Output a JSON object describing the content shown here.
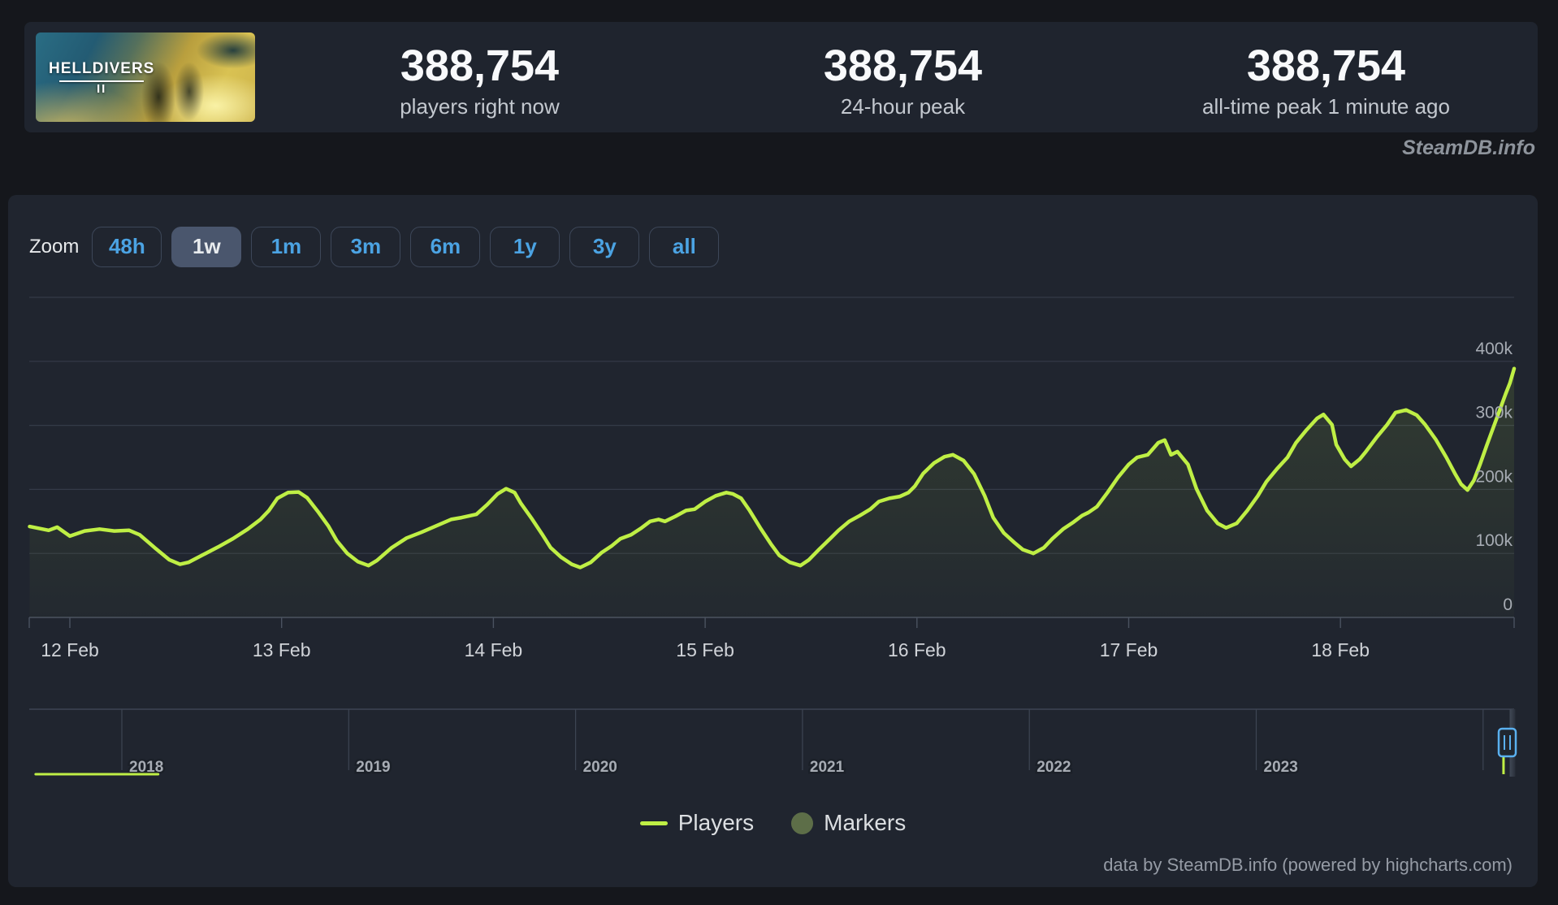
{
  "page": {
    "watermark": "SteamDB.info"
  },
  "header": {
    "capsule": {
      "title": "HELLDIVERS",
      "numeral": "II"
    },
    "stats": [
      {
        "value": "388,754",
        "label": "players right now"
      },
      {
        "value": "388,754",
        "label": "24-hour peak"
      },
      {
        "value": "388,754",
        "label": "all-time peak 1 minute ago"
      }
    ]
  },
  "toolbar": {
    "zoom_label": "Zoom",
    "ranges": [
      {
        "label": "48h",
        "selected": false
      },
      {
        "label": "1w",
        "selected": true
      },
      {
        "label": "1m",
        "selected": false
      },
      {
        "label": "3m",
        "selected": false
      },
      {
        "label": "6m",
        "selected": false
      },
      {
        "label": "1y",
        "selected": false
      },
      {
        "label": "3y",
        "selected": false
      },
      {
        "label": "all",
        "selected": false
      }
    ]
  },
  "chart_data": {
    "type": "line",
    "title": "Concurrent Steam players for HELLDIVERS II",
    "y_axis": {
      "unit": "players (thousands)",
      "gridline_values": [
        0,
        100,
        200,
        300,
        400,
        500
      ],
      "tick_labels": [
        {
          "value": 0,
          "label": "0"
        },
        {
          "value": 100,
          "label": "100k"
        },
        {
          "value": 200,
          "label": "200k"
        },
        {
          "value": 300,
          "label": "300k"
        },
        {
          "value": 400,
          "label": "400k"
        }
      ]
    },
    "x_axis": {
      "tick_days": [
        0,
        1,
        2,
        3,
        4,
        5,
        6
      ],
      "labels": [
        "12 Feb",
        "13 Feb",
        "14 Feb",
        "15 Feb",
        "16 Feb",
        "17 Feb",
        "18 Feb"
      ]
    },
    "series": [
      {
        "name": "Players",
        "color": "#bfef45",
        "x_unit": "days after 12 Feb 00:00",
        "y_unit": "thousands of players",
        "points": [
          [
            -0.19,
            142
          ],
          [
            -0.1,
            136
          ],
          [
            -0.06,
            141
          ],
          [
            0.0,
            127
          ],
          [
            0.07,
            135
          ],
          [
            0.14,
            138
          ],
          [
            0.21,
            135
          ],
          [
            0.28,
            136
          ],
          [
            0.33,
            129
          ],
          [
            0.4,
            109
          ],
          [
            0.47,
            90
          ],
          [
            0.52,
            83
          ],
          [
            0.56,
            86
          ],
          [
            0.63,
            98
          ],
          [
            0.7,
            110
          ],
          [
            0.77,
            123
          ],
          [
            0.84,
            138
          ],
          [
            0.9,
            153
          ],
          [
            0.94,
            167
          ],
          [
            0.98,
            186
          ],
          [
            1.03,
            195
          ],
          [
            1.08,
            196
          ],
          [
            1.12,
            187
          ],
          [
            1.17,
            166
          ],
          [
            1.22,
            143
          ],
          [
            1.26,
            120
          ],
          [
            1.31,
            100
          ],
          [
            1.36,
            87
          ],
          [
            1.41,
            81
          ],
          [
            1.45,
            89
          ],
          [
            1.52,
            109
          ],
          [
            1.59,
            124
          ],
          [
            1.66,
            133
          ],
          [
            1.73,
            143
          ],
          [
            1.8,
            153
          ],
          [
            1.85,
            156
          ],
          [
            1.92,
            161
          ],
          [
            1.97,
            176
          ],
          [
            2.02,
            193
          ],
          [
            2.06,
            201
          ],
          [
            2.1,
            195
          ],
          [
            2.13,
            178
          ],
          [
            2.18,
            155
          ],
          [
            2.23,
            130
          ],
          [
            2.27,
            109
          ],
          [
            2.32,
            94
          ],
          [
            2.37,
            83
          ],
          [
            2.41,
            78
          ],
          [
            2.46,
            86
          ],
          [
            2.51,
            101
          ],
          [
            2.56,
            112
          ],
          [
            2.6,
            123
          ],
          [
            2.65,
            129
          ],
          [
            2.7,
            140
          ],
          [
            2.74,
            150
          ],
          [
            2.78,
            153
          ],
          [
            2.81,
            150
          ],
          [
            2.86,
            158
          ],
          [
            2.91,
            167
          ],
          [
            2.95,
            169
          ],
          [
            3.0,
            181
          ],
          [
            3.05,
            190
          ],
          [
            3.1,
            195
          ],
          [
            3.13,
            193
          ],
          [
            3.17,
            186
          ],
          [
            3.21,
            167
          ],
          [
            3.26,
            140
          ],
          [
            3.31,
            115
          ],
          [
            3.35,
            97
          ],
          [
            3.4,
            86
          ],
          [
            3.45,
            81
          ],
          [
            3.49,
            90
          ],
          [
            3.54,
            107
          ],
          [
            3.59,
            123
          ],
          [
            3.63,
            136
          ],
          [
            3.68,
            150
          ],
          [
            3.73,
            159
          ],
          [
            3.78,
            169
          ],
          [
            3.82,
            181
          ],
          [
            3.87,
            186
          ],
          [
            3.92,
            189
          ],
          [
            3.96,
            195
          ],
          [
            3.99,
            205
          ],
          [
            4.03,
            225
          ],
          [
            4.08,
            241
          ],
          [
            4.13,
            251
          ],
          [
            4.17,
            254
          ],
          [
            4.22,
            245
          ],
          [
            4.27,
            224
          ],
          [
            4.32,
            190
          ],
          [
            4.36,
            156
          ],
          [
            4.41,
            132
          ],
          [
            4.46,
            117
          ],
          [
            4.5,
            106
          ],
          [
            4.55,
            100
          ],
          [
            4.6,
            109
          ],
          [
            4.64,
            123
          ],
          [
            4.69,
            138
          ],
          [
            4.74,
            149
          ],
          [
            4.78,
            159
          ],
          [
            4.81,
            164
          ],
          [
            4.85,
            173
          ],
          [
            4.9,
            195
          ],
          [
            4.95,
            219
          ],
          [
            5.0,
            239
          ],
          [
            5.04,
            250
          ],
          [
            5.09,
            254
          ],
          [
            5.14,
            273
          ],
          [
            5.17,
            277
          ],
          [
            5.2,
            254
          ],
          [
            5.23,
            259
          ],
          [
            5.28,
            239
          ],
          [
            5.32,
            201
          ],
          [
            5.37,
            167
          ],
          [
            5.42,
            147
          ],
          [
            5.46,
            140
          ],
          [
            5.51,
            147
          ],
          [
            5.56,
            167
          ],
          [
            5.61,
            190
          ],
          [
            5.65,
            212
          ],
          [
            5.7,
            232
          ],
          [
            5.75,
            250
          ],
          [
            5.79,
            273
          ],
          [
            5.84,
            293
          ],
          [
            5.89,
            311
          ],
          [
            5.92,
            317
          ],
          [
            5.96,
            301
          ],
          [
            5.98,
            270
          ],
          [
            6.02,
            247
          ],
          [
            6.05,
            236
          ],
          [
            6.09,
            247
          ],
          [
            6.12,
            259
          ],
          [
            6.17,
            281
          ],
          [
            6.22,
            301
          ],
          [
            6.26,
            320
          ],
          [
            6.31,
            324
          ],
          [
            6.36,
            316
          ],
          [
            6.4,
            301
          ],
          [
            6.45,
            278
          ],
          [
            6.5,
            250
          ],
          [
            6.54,
            225
          ],
          [
            6.57,
            208
          ],
          [
            6.6,
            199
          ],
          [
            6.63,
            214
          ],
          [
            6.66,
            240
          ],
          [
            6.69,
            268
          ],
          [
            6.72,
            295
          ],
          [
            6.75,
            322
          ],
          [
            6.78,
            349
          ],
          [
            6.8,
            366
          ],
          [
            6.82,
            388.754
          ]
        ]
      }
    ],
    "navigator": {
      "year_ticks": [
        2018,
        2019,
        2020,
        2021,
        2022,
        2023,
        2024
      ],
      "year_labels": [
        "2018",
        "2019",
        "2020",
        "2021",
        "2022",
        "2023"
      ],
      "baseline_year_span": [
        2017.62,
        2018.16
      ],
      "spike_year": 2024.09,
      "spike_value_label": "388,754"
    },
    "legend": [
      {
        "label": "Players",
        "marker": "line",
        "color": "#bfef45"
      },
      {
        "label": "Markers",
        "marker": "circle",
        "color": "#5d6e48"
      }
    ],
    "credits": "data by SteamDB.info (powered by highcharts.com)"
  },
  "colors": {
    "accent_blue": "#4ba3e3",
    "line_lime": "#bfef45",
    "marker_olive": "#5d6e48",
    "panel_bg": "#20252f",
    "card_bg": "#1f242e",
    "page_bg": "#15171c",
    "gridline": "#343b48",
    "axis_line": "#4a5260",
    "navigator_outline": "#3d4553",
    "handle_blue": "#5ab0ef"
  }
}
